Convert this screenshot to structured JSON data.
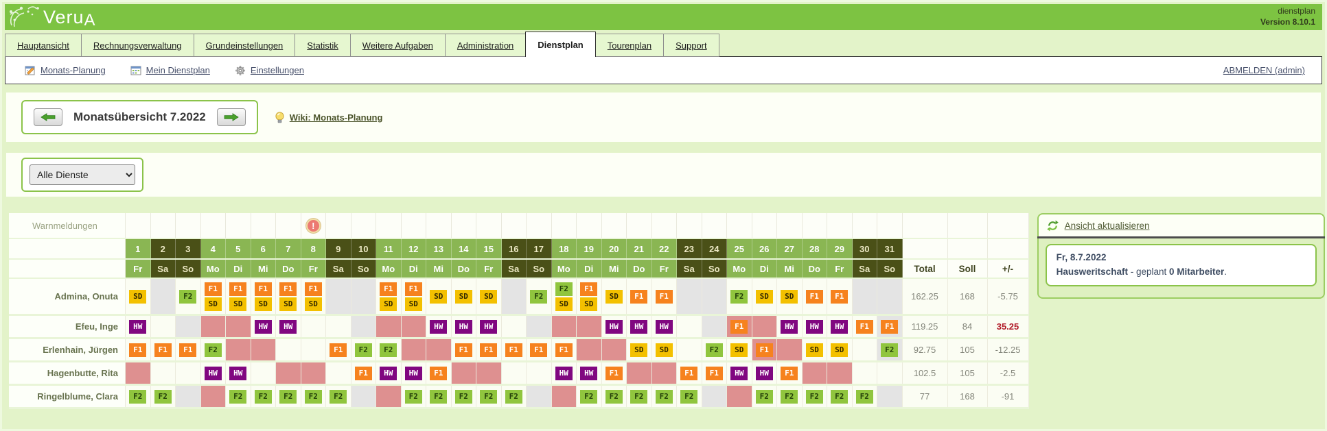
{
  "header": {
    "logo_prefix": "Veru",
    "logo_suffix": "A",
    "app_label": "dienstplan",
    "version": "Version 8.10.1"
  },
  "tabs": [
    {
      "label": "Hauptansicht",
      "active": false
    },
    {
      "label": "Rechnungsverwaltung",
      "active": false
    },
    {
      "label": "Grundeinstellungen",
      "active": false
    },
    {
      "label": "Statistik",
      "active": false
    },
    {
      "label": "Weitere Aufgaben",
      "active": false
    },
    {
      "label": "Administration",
      "active": false
    },
    {
      "label": "Dienstplan",
      "active": true
    },
    {
      "label": "Tourenplan",
      "active": false
    },
    {
      "label": "Support",
      "active": false
    }
  ],
  "toolbar": {
    "links": [
      {
        "label": "Monats-Planung",
        "icon": "calendar-edit-icon"
      },
      {
        "label": "Mein Dienstplan",
        "icon": "calendar-icon"
      },
      {
        "label": "Einstellungen",
        "icon": "gear-icon"
      }
    ],
    "logout_label": "ABMELDEN (admin)"
  },
  "month_nav": {
    "title": "Monatsübersicht 7.2022",
    "wiki_label": "Wiki: Monats-Planung"
  },
  "filter": {
    "selected": "Alle Dienste"
  },
  "roster": {
    "warn_label": "Warnmeldungen",
    "warning_day": 8,
    "columns": {
      "total": "Total",
      "soll": "Soll",
      "diff": "+/-"
    },
    "days": [
      {
        "num": "1",
        "dow": "Fr"
      },
      {
        "num": "2",
        "dow": "Sa"
      },
      {
        "num": "3",
        "dow": "So"
      },
      {
        "num": "4",
        "dow": "Mo"
      },
      {
        "num": "5",
        "dow": "Di"
      },
      {
        "num": "6",
        "dow": "Mi"
      },
      {
        "num": "7",
        "dow": "Do"
      },
      {
        "num": "8",
        "dow": "Fr"
      },
      {
        "num": "9",
        "dow": "Sa"
      },
      {
        "num": "10",
        "dow": "So"
      },
      {
        "num": "11",
        "dow": "Mo"
      },
      {
        "num": "12",
        "dow": "Di"
      },
      {
        "num": "13",
        "dow": "Mi"
      },
      {
        "num": "14",
        "dow": "Do"
      },
      {
        "num": "15",
        "dow": "Fr"
      },
      {
        "num": "16",
        "dow": "Sa"
      },
      {
        "num": "17",
        "dow": "So"
      },
      {
        "num": "18",
        "dow": "Mo"
      },
      {
        "num": "19",
        "dow": "Di"
      },
      {
        "num": "20",
        "dow": "Mi"
      },
      {
        "num": "21",
        "dow": "Do"
      },
      {
        "num": "22",
        "dow": "Fr"
      },
      {
        "num": "23",
        "dow": "Sa"
      },
      {
        "num": "24",
        "dow": "So"
      },
      {
        "num": "25",
        "dow": "Mo"
      },
      {
        "num": "26",
        "dow": "Di"
      },
      {
        "num": "27",
        "dow": "Mi"
      },
      {
        "num": "28",
        "dow": "Do"
      },
      {
        "num": "29",
        "dow": "Fr"
      },
      {
        "num": "30",
        "dow": "Sa"
      },
      {
        "num": "31",
        "dow": "So"
      }
    ],
    "badge_colors": {
      "SD": {
        "bg": "#f3c000",
        "fg": "#332900"
      },
      "F1": {
        "bg": "#f6821e",
        "fg": "#ffffff"
      },
      "F2": {
        "bg": "#90c53e",
        "fg": "#24400a"
      },
      "HW": {
        "bg": "#800780",
        "fg": "#ffffff"
      }
    },
    "cell_bg_colors": {
      "pink": "#de9090",
      "gray": "#e4e4e4"
    },
    "employees": [
      {
        "name": "Admina, Onuta",
        "total": "162.25",
        "soll": "168",
        "diff": "-5.75",
        "diff_alert": false,
        "cells": [
          "SD",
          "@gray",
          "F2",
          "F1+SD",
          "F1+SD",
          "F1+SD",
          "F1+SD",
          "F1+SD",
          "@gray",
          "@gray",
          "F1+SD",
          "F1+SD",
          "SD",
          "SD",
          "SD",
          "@gray",
          "F2",
          "F2+SD",
          "F1+SD",
          "SD",
          "F1",
          "F1",
          "@gray",
          "@gray",
          "F2",
          "SD",
          "SD",
          "F1",
          "F1",
          "@gray",
          "@gray"
        ]
      },
      {
        "name": "Efeu, Inge",
        "total": "119.25",
        "soll": "84",
        "diff": "35.25",
        "diff_alert": true,
        "cells": [
          "HW",
          "",
          "@gray",
          "@pink",
          "@pink",
          "HW",
          "HW",
          "",
          "",
          "@gray",
          "@pink",
          "@pink",
          "HW",
          "HW",
          "HW",
          "",
          "@gray",
          "@pink",
          "@pink",
          "HW",
          "HW",
          "HW",
          "",
          "@gray",
          "F1@pink",
          "@pink",
          "HW",
          "HW",
          "HW",
          "F1",
          "F1@gray"
        ]
      },
      {
        "name": "Erlenhain, Jürgen",
        "total": "92.75",
        "soll": "105",
        "diff": "-12.25",
        "diff_alert": false,
        "cells": [
          "F1",
          "F1",
          "F1",
          "F2",
          "@pink",
          "@pink",
          "",
          "",
          "F1",
          "F2",
          "F2",
          "@pink",
          "@pink",
          "F1",
          "F1",
          "F1",
          "F1",
          "F1",
          "@pink",
          "@pink",
          "SD",
          "SD",
          "",
          "F2",
          "SD",
          "F1@pink",
          "@pink",
          "SD",
          "SD",
          "",
          "F2@gray"
        ]
      },
      {
        "name": "Hagenbutte, Rita",
        "total": "102.5",
        "soll": "105",
        "diff": "-2.5",
        "diff_alert": false,
        "cells": [
          "@pink",
          "",
          "",
          "HW",
          "HW",
          "",
          "@pink",
          "@pink",
          "",
          "F1",
          "HW",
          "HW",
          "F1",
          "@pink",
          "@pink",
          "",
          "",
          "HW",
          "HW",
          "F1",
          "@pink",
          "@pink",
          "F1",
          "F1",
          "HW",
          "HW",
          "F1",
          "@pink",
          "@pink",
          "",
          ""
        ]
      },
      {
        "name": "Ringelblume, Clara",
        "total": "77",
        "soll": "168",
        "diff": "-91",
        "diff_alert": false,
        "cells": [
          "F2",
          "F2",
          "@gray",
          "@pink",
          "F2",
          "F2",
          "F2",
          "F2",
          "F2",
          "@gray",
          "@pink",
          "F2",
          "F2",
          "F2",
          "F2",
          "F2",
          "@gray",
          "@pink",
          "F2",
          "F2",
          "F2",
          "F2",
          "F2",
          "@gray",
          "@pink",
          "F2",
          "F2",
          "F2",
          "F2",
          "F2",
          "@gray"
        ]
      }
    ]
  },
  "right_panel": {
    "refresh_label": "Ansicht aktualisieren",
    "info_line1": "Fr, 8.7.2022",
    "info_bold": "Hausweritschaft",
    "info_mid": " - geplant ",
    "info_count": "0 Mitarbeiter",
    "info_end": "."
  }
}
